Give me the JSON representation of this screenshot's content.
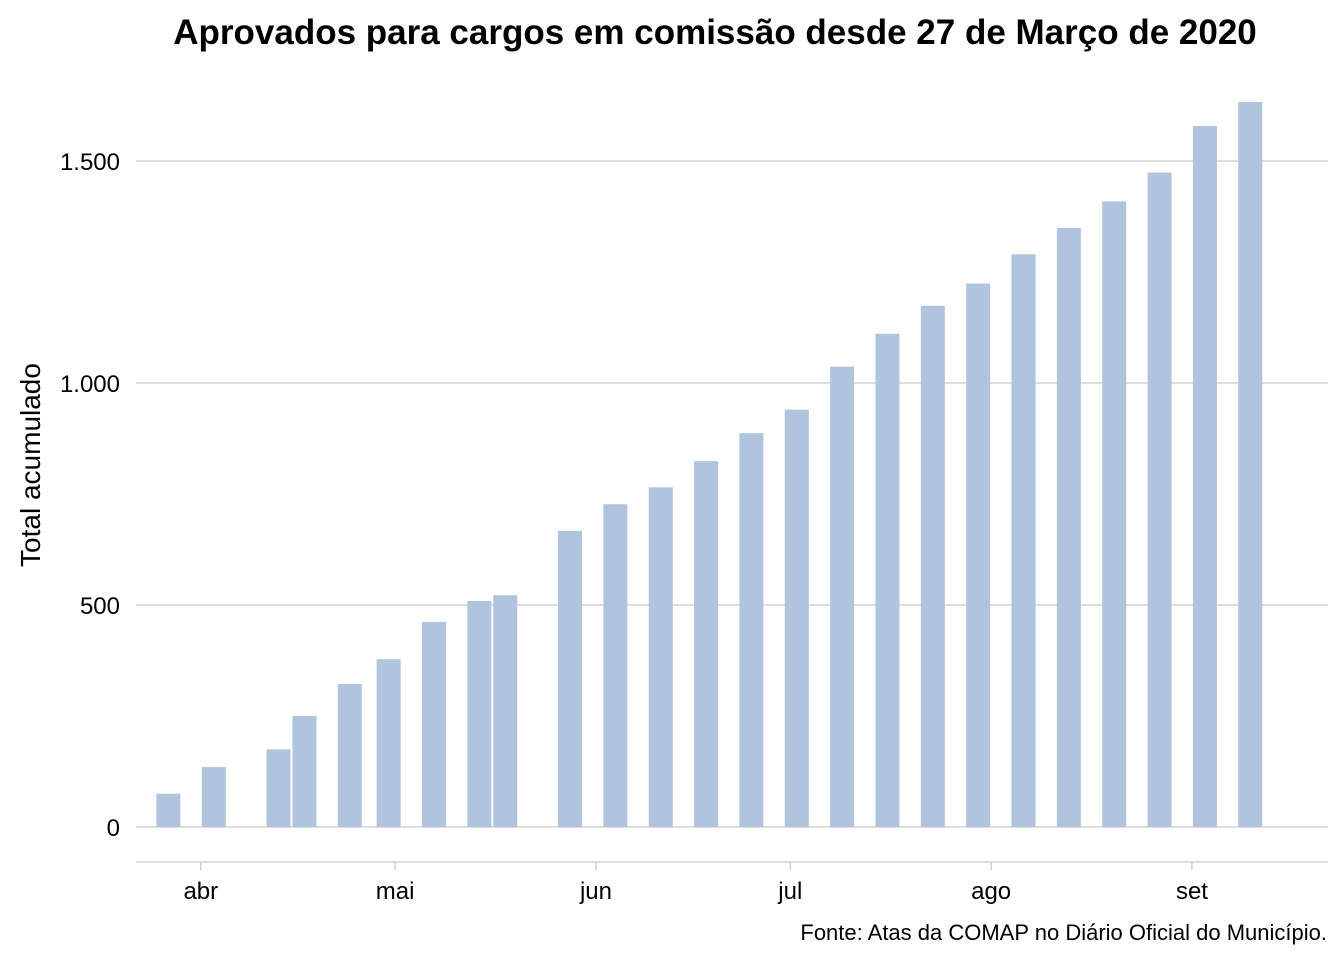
{
  "chart_data": {
    "type": "bar",
    "title": "Aprovados para cargos em comissão desde 27 de Março de 2020",
    "xlabel": "",
    "ylabel": "Total acumulado",
    "caption": "Fonte: Atas da COMAP no Diário Oficial do Município.",
    "bar_color": "#b0c4de",
    "grid_color": "#d3d3d3",
    "grid": true,
    "ylim": [
      -75,
      1640
    ],
    "xlim": [
      "2020-03-22",
      "2020-09-22"
    ],
    "y_ticks": [
      {
        "value": 0,
        "label": "0"
      },
      {
        "value": 500,
        "label": "500"
      },
      {
        "value": 1000,
        "label": "1.000"
      },
      {
        "value": 1500,
        "label": "1.500"
      }
    ],
    "x_ticks": [
      {
        "date": "2020-04-01",
        "label": "abr"
      },
      {
        "date": "2020-05-01",
        "label": "mai"
      },
      {
        "date": "2020-06-01",
        "label": "jun"
      },
      {
        "date": "2020-07-01",
        "label": "jul"
      },
      {
        "date": "2020-08-01",
        "label": "ago"
      },
      {
        "date": "2020-09-01",
        "label": "set"
      }
    ],
    "dates": [
      "2020-03-27",
      "2020-04-03",
      "2020-04-13",
      "2020-04-17",
      "2020-04-24",
      "2020-04-30",
      "2020-05-07",
      "2020-05-14",
      "2020-05-18",
      "2020-05-28",
      "2020-06-04",
      "2020-06-11",
      "2020-06-18",
      "2020-06-25",
      "2020-07-02",
      "2020-07-09",
      "2020-07-16",
      "2020-07-23",
      "2020-07-30",
      "2020-08-06",
      "2020-08-13",
      "2020-08-20",
      "2020-08-27",
      "2020-09-03",
      "2020-09-10"
    ],
    "values": [
      75,
      135,
      175,
      250,
      322,
      378,
      462,
      509,
      522,
      667,
      727,
      765,
      824,
      887,
      940,
      1037,
      1111,
      1174,
      1224,
      1290,
      1349,
      1409,
      1474,
      1579,
      1633
    ]
  }
}
